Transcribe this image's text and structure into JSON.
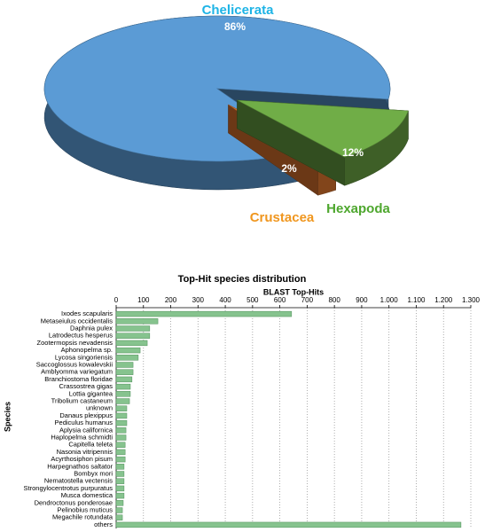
{
  "chart_data": [
    {
      "type": "pie3d",
      "categories": [
        "Chelicerata",
        "Hexapoda",
        "Crustacea"
      ],
      "values": [
        86,
        12,
        2
      ],
      "value_labels": [
        "86%",
        "12%",
        "2%"
      ],
      "colors": [
        "#5b9bd5",
        "#70ad47",
        "#ed7d31"
      ],
      "label_colors": [
        "#1eb4e6",
        "#4ea72e",
        "#f0961e"
      ]
    },
    {
      "type": "barh",
      "title": "Top-Hit species distribution",
      "xlabel": "BLAST Top-Hits",
      "ylabel": "Species",
      "categories": [
        "Ixodes scapularis",
        "Metaseiulus occidentalis",
        "Daphnia pulex",
        "Latrodectus hesperus",
        "Zootermopsis nevadensis",
        "Aphonopelma sp.",
        "Lycosa singoriensis",
        "Saccoglossus kowalevskii",
        "Amblyomma variegatum",
        "Branchiostoma floridae",
        "Crassostrea gigas",
        "Lottia gigantea",
        "Tribolium castaneum",
        "unknown",
        "Danaus plexippus",
        "Pediculus humanus",
        "Aplysia californica",
        "Haplopelma schmidti",
        "Capitella teleta",
        "Nasonia vitripennis",
        "Acyrthosiphon pisum",
        "Harpegnathos saltator",
        "Bombyx mori",
        "Nematostella vectensis",
        "Strongylocentrotus purpuratus",
        "Musca domestica",
        "Dendroctonus ponderosae",
        "Pelinobius muticus",
        "Megachile rotundata",
        "others"
      ],
      "values": [
        643,
        153,
        123,
        123,
        114,
        88,
        81,
        62,
        62,
        58,
        52,
        52,
        49,
        39,
        39,
        39,
        36,
        36,
        33,
        33,
        33,
        29,
        29,
        29,
        29,
        29,
        26,
        23,
        23,
        1264
      ],
      "color": "#86c38e",
      "xlim": [
        0,
        1300
      ],
      "xticks": [
        0,
        100,
        200,
        300,
        400,
        500,
        600,
        700,
        800,
        900,
        {
          "value": 1000,
          "label": "1.000"
        },
        {
          "value": 1100,
          "label": "1.100"
        },
        {
          "value": 1200,
          "label": "1.200"
        },
        {
          "value": 1300,
          "label": "1.300"
        }
      ],
      "grid": true
    }
  ]
}
